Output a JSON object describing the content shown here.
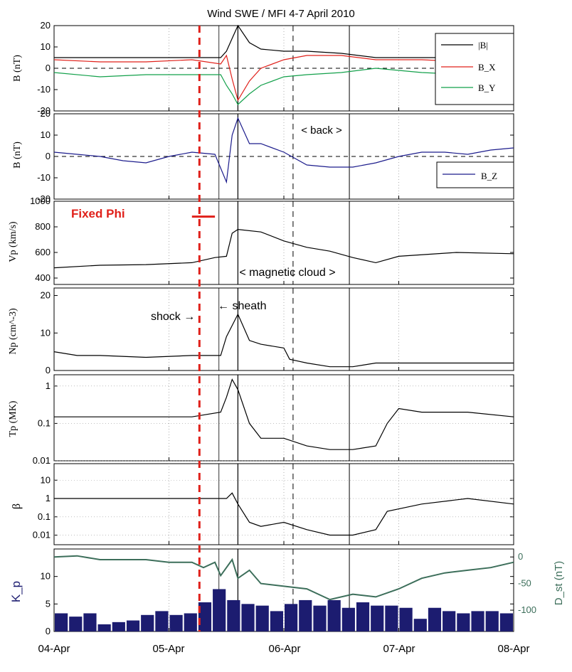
{
  "title": "Wind SWE / MFI   4-7 April 2010",
  "x_ticks": [
    "04-Apr",
    "05-Apr",
    "06-Apr",
    "07-Apr",
    "08-Apr"
  ],
  "colors": {
    "bmag": "#000000",
    "bx": "#e0201a",
    "by": "#12a04a",
    "bz": "#1c1c8c",
    "fixed": "#e0201a",
    "kp": "#1c1c70",
    "dst": "#3c6e5a"
  },
  "chart_data": [
    {
      "type": "line",
      "ylabel": "B (nT)",
      "ylim": [
        -20,
        20
      ],
      "yticks": [
        -20,
        -10,
        0,
        10,
        20
      ],
      "legend": [
        "|B|",
        "B_X",
        "B_Y"
      ],
      "legend_placement": "top-right",
      "series": [
        {
          "name": "|B|",
          "x": [
            0,
            0.4,
            0.8,
            1.2,
            1.45,
            1.5,
            1.55,
            1.6,
            1.7,
            1.8,
            2.0,
            2.2,
            2.5,
            2.8,
            3.2,
            3.6,
            4.0
          ],
          "y": [
            5,
            5,
            5,
            5,
            5,
            8,
            14,
            20,
            12,
            9,
            8,
            8,
            7,
            5,
            5,
            5,
            5
          ]
        },
        {
          "name": "B_X",
          "x": [
            0,
            0.4,
            0.8,
            1.2,
            1.45,
            1.5,
            1.55,
            1.6,
            1.7,
            1.8,
            2.0,
            2.2,
            2.5,
            2.8,
            3.2,
            3.6,
            4.0
          ],
          "y": [
            4,
            3,
            3,
            4,
            2,
            6,
            -5,
            -15,
            -6,
            0,
            4,
            6,
            6,
            4,
            4,
            3,
            3
          ]
        },
        {
          "name": "B_Y",
          "x": [
            0,
            0.4,
            0.8,
            1.2,
            1.45,
            1.5,
            1.55,
            1.6,
            1.7,
            1.8,
            2.0,
            2.2,
            2.5,
            2.8,
            3.2,
            3.6,
            4.0
          ],
          "y": [
            -2,
            -4,
            -3,
            -3,
            -3,
            -8,
            -12,
            -17,
            -12,
            -8,
            -4,
            -3,
            -2,
            0,
            -2,
            -3,
            -3
          ]
        }
      ]
    },
    {
      "type": "line",
      "ylabel": "B (nT)",
      "ylim": [
        -20,
        20
      ],
      "yticks": [
        -20,
        -10,
        0,
        10,
        20
      ],
      "legend": [
        "B_Z"
      ],
      "legend_placement": "bottom-right",
      "annotation": "< back >",
      "series": [
        {
          "name": "B_Z",
          "x": [
            0,
            0.2,
            0.4,
            0.6,
            0.8,
            1.0,
            1.2,
            1.4,
            1.5,
            1.55,
            1.6,
            1.7,
            1.8,
            2.0,
            2.2,
            2.4,
            2.6,
            2.8,
            3.0,
            3.2,
            3.4,
            3.6,
            3.8,
            4.0
          ],
          "y": [
            2,
            1,
            0,
            -2,
            -3,
            0,
            2,
            1,
            -12,
            10,
            18,
            6,
            6,
            2,
            -4,
            -5,
            -5,
            -3,
            0,
            2,
            2,
            1,
            3,
            4
          ]
        }
      ]
    },
    {
      "type": "line",
      "ylabel": "Vp (km/s)",
      "ylim": [
        350,
        1000
      ],
      "yticks": [
        400,
        600,
        800,
        1000
      ],
      "annotation": "< magnetic cloud >",
      "label": "Fixed Phi",
      "fixed_phi_interval": [
        1.2,
        1.4
      ],
      "series": [
        {
          "name": "Vp",
          "x": [
            0,
            0.4,
            0.8,
            1.2,
            1.4,
            1.5,
            1.55,
            1.6,
            1.8,
            2.0,
            2.2,
            2.4,
            2.6,
            2.8,
            3.0,
            3.5,
            4.0
          ],
          "y": [
            480,
            500,
            505,
            520,
            560,
            570,
            750,
            780,
            760,
            690,
            640,
            610,
            560,
            520,
            570,
            600,
            590
          ]
        }
      ]
    },
    {
      "type": "line",
      "ylabel": "Np (cm^-3)",
      "ylim": [
        0,
        22
      ],
      "yticks": [
        0,
        10,
        20
      ],
      "annotations": [
        "shock →",
        "← sheath"
      ],
      "series": [
        {
          "name": "Np",
          "x": [
            0,
            0.2,
            0.4,
            0.8,
            1.2,
            1.45,
            1.5,
            1.6,
            1.7,
            1.8,
            2.0,
            2.05,
            2.2,
            2.4,
            2.6,
            2.8,
            3.2,
            3.6,
            4.0
          ],
          "y": [
            5,
            4,
            4,
            3.5,
            4,
            4,
            9,
            15,
            8,
            7,
            6,
            3,
            2,
            1,
            1,
            2,
            2,
            2,
            2
          ]
        }
      ]
    },
    {
      "type": "line",
      "ylabel": "Tp (MK)",
      "log_scale": true,
      "ylim": [
        0.01,
        2
      ],
      "yticks": [
        0.01,
        0.1,
        1
      ],
      "series": [
        {
          "name": "Tp",
          "x": [
            0,
            0.4,
            0.8,
            1.2,
            1.45,
            1.5,
            1.55,
            1.6,
            1.7,
            1.8,
            2.0,
            2.2,
            2.4,
            2.6,
            2.8,
            2.9,
            3.0,
            3.2,
            3.6,
            4.0
          ],
          "y": [
            0.15,
            0.15,
            0.15,
            0.15,
            0.2,
            0.5,
            1.5,
            0.8,
            0.1,
            0.04,
            0.04,
            0.025,
            0.02,
            0.02,
            0.025,
            0.1,
            0.25,
            0.2,
            0.2,
            0.15
          ]
        }
      ]
    },
    {
      "type": "line",
      "ylabel": "β",
      "log_scale": true,
      "ylim": [
        0.003,
        80
      ],
      "yticks": [
        0.01,
        0.1,
        1,
        10
      ],
      "series": [
        {
          "name": "beta",
          "x": [
            0,
            0.4,
            0.8,
            1.2,
            1.45,
            1.5,
            1.55,
            1.6,
            1.7,
            1.8,
            2.0,
            2.2,
            2.4,
            2.6,
            2.8,
            2.9,
            3.2,
            3.6,
            4.0
          ],
          "y": [
            1,
            1,
            1,
            1,
            1,
            1,
            2,
            0.5,
            0.05,
            0.03,
            0.05,
            0.02,
            0.01,
            0.01,
            0.02,
            0.2,
            0.5,
            1,
            0.5
          ]
        }
      ]
    },
    {
      "type": "bar",
      "ylabel": "K_p",
      "y2label": "D_st (nT)",
      "ylim": [
        0,
        15
      ],
      "yticks": [
        0,
        5,
        10
      ],
      "y2lim": [
        -140,
        15
      ],
      "y2ticks": [
        0,
        -50,
        -100
      ],
      "kp": [
        3.3,
        2.7,
        3.3,
        1.3,
        1.7,
        2.0,
        3.0,
        3.7,
        3.0,
        3.3,
        5.3,
        7.7,
        5.7,
        5.0,
        4.7,
        3.7,
        5.0,
        5.7,
        4.7,
        5.7,
        4.3,
        5.3,
        4.7,
        4.7,
        4.3,
        2.3,
        4.3,
        3.7,
        3.3,
        3.7,
        3.7,
        3.3
      ],
      "dst": [
        {
          "x": 0,
          "y": 0
        },
        {
          "x": 0.2,
          "y": 2
        },
        {
          "x": 0.4,
          "y": -5
        },
        {
          "x": 0.6,
          "y": -5
        },
        {
          "x": 0.8,
          "y": -5
        },
        {
          "x": 1.0,
          "y": -10
        },
        {
          "x": 1.2,
          "y": -10
        },
        {
          "x": 1.3,
          "y": -20
        },
        {
          "x": 1.4,
          "y": -10
        },
        {
          "x": 1.45,
          "y": -35
        },
        {
          "x": 1.55,
          "y": -5
        },
        {
          "x": 1.6,
          "y": -40
        },
        {
          "x": 1.7,
          "y": -25
        },
        {
          "x": 1.8,
          "y": -50
        },
        {
          "x": 2.0,
          "y": -55
        },
        {
          "x": 2.2,
          "y": -60
        },
        {
          "x": 2.4,
          "y": -80
        },
        {
          "x": 2.6,
          "y": -70
        },
        {
          "x": 2.8,
          "y": -75
        },
        {
          "x": 3.0,
          "y": -60
        },
        {
          "x": 3.2,
          "y": -40
        },
        {
          "x": 3.4,
          "y": -30
        },
        {
          "x": 3.6,
          "y": -25
        },
        {
          "x": 3.8,
          "y": -20
        },
        {
          "x": 4.0,
          "y": -10
        }
      ]
    }
  ]
}
